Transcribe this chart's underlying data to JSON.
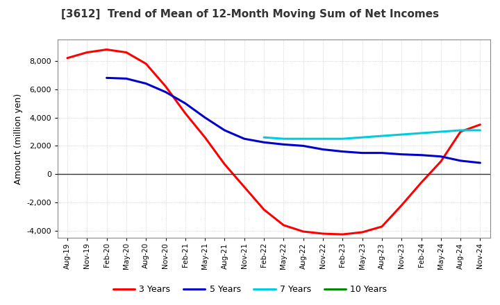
{
  "title": "[3612]  Trend of Mean of 12-Month Moving Sum of Net Incomes",
  "ylabel": "Amount (million yen)",
  "ylim": [
    -4500,
    9500
  ],
  "yticks": [
    -4000,
    -2000,
    0,
    2000,
    4000,
    6000,
    8000
  ],
  "background_color": "#ffffff",
  "grid_color": "#bbbbbb",
  "x_labels": [
    "Aug-19",
    "Nov-19",
    "Feb-20",
    "May-20",
    "Aug-20",
    "Nov-20",
    "Feb-21",
    "May-21",
    "Aug-21",
    "Nov-21",
    "Feb-22",
    "May-22",
    "Aug-22",
    "Nov-22",
    "Feb-23",
    "May-23",
    "Aug-23",
    "Nov-23",
    "Feb-24",
    "May-24",
    "Aug-24",
    "Nov-24"
  ],
  "series": {
    "3 Years": {
      "color": "#ff0000",
      "linewidth": 2.2,
      "values": [
        8200,
        8600,
        8800,
        8600,
        7800,
        6200,
        4300,
        2600,
        700,
        -900,
        -2500,
        -3600,
        -4050,
        -4200,
        -4250,
        -4100,
        -3700,
        -2200,
        -600,
        900,
        3000,
        3500
      ]
    },
    "5 Years": {
      "color": "#0000cc",
      "linewidth": 2.2,
      "values": [
        null,
        null,
        6800,
        6750,
        6400,
        5800,
        5000,
        4000,
        3100,
        2500,
        2250,
        2100,
        2000,
        1750,
        1600,
        1500,
        1500,
        1400,
        1350,
        1250,
        950,
        800
      ]
    },
    "7 Years": {
      "color": "#00ccdd",
      "linewidth": 2.2,
      "values": [
        null,
        null,
        null,
        null,
        null,
        null,
        null,
        null,
        null,
        null,
        2600,
        2500,
        2500,
        2500,
        2500,
        2600,
        2700,
        2800,
        2900,
        3000,
        3100,
        3100
      ]
    },
    "10 Years": {
      "color": "#008800",
      "linewidth": 2.2,
      "values": [
        null,
        null,
        null,
        null,
        null,
        null,
        null,
        null,
        null,
        null,
        null,
        null,
        null,
        null,
        null,
        null,
        null,
        null,
        null,
        null,
        null,
        null
      ]
    }
  },
  "legend_order": [
    "3 Years",
    "5 Years",
    "7 Years",
    "10 Years"
  ]
}
